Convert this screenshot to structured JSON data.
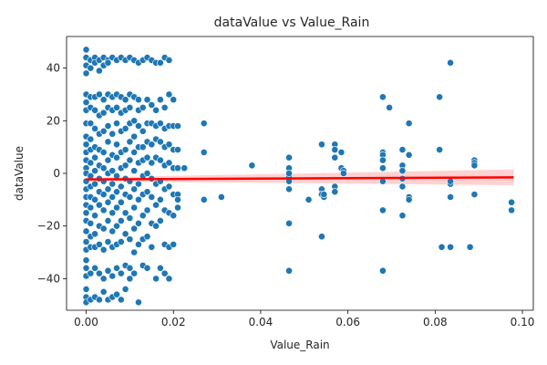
{
  "chart_data": {
    "type": "scatter",
    "title": "dataValue vs Value_Rain",
    "xlabel": "Value_Rain",
    "ylabel": "dataValue",
    "xlim": [
      -0.0045,
      0.1025
    ],
    "ylim": [
      -52,
      52
    ],
    "xticks": [
      0.0,
      0.02,
      0.04,
      0.06,
      0.08,
      0.1
    ],
    "xtick_labels": [
      "0.00",
      "0.02",
      "0.04",
      "0.06",
      "0.08",
      "0.10"
    ],
    "yticks": [
      -40,
      -20,
      0,
      20,
      40
    ],
    "ytick_labels": [
      "−40",
      "−20",
      "0",
      "20",
      "40"
    ],
    "grid": false,
    "legend": "none",
    "colors": {
      "points": "#1f77b4",
      "point_edge": "#ffffff",
      "fit_line": "#ff0000",
      "confidence_band": "#ffcccc"
    },
    "regression": {
      "x": [
        0.0,
        0.098
      ],
      "y": [
        -2.3,
        -1.5
      ],
      "ci_lower": [
        -3.0,
        -4.5
      ],
      "ci_upper": [
        -1.6,
        1.5
      ]
    },
    "series": [
      {
        "x": [
          0.0,
          0.0,
          0.0,
          0.0,
          0.0,
          0.0,
          0.0,
          0.0,
          0.0,
          0.0,
          0.0,
          0.0,
          0.0,
          0.0,
          0.0,
          0.0,
          0.0,
          0.0,
          0.0,
          0.0,
          0.0,
          0.0,
          0.0,
          0.0,
          0.0,
          0.0,
          0.0,
          0.0,
          0.0,
          0.001,
          0.001,
          0.001,
          0.001,
          0.001,
          0.001,
          0.001,
          0.001,
          0.001,
          0.001,
          0.001,
          0.001,
          0.001,
          0.001,
          0.001,
          0.001,
          0.001,
          0.002,
          0.002,
          0.002,
          0.002,
          0.002,
          0.002,
          0.002,
          0.002,
          0.002,
          0.002,
          0.002,
          0.002,
          0.002,
          0.002,
          0.002,
          0.003,
          0.003,
          0.003,
          0.003,
          0.003,
          0.003,
          0.003,
          0.003,
          0.003,
          0.003,
          0.003,
          0.003,
          0.003,
          0.003,
          0.004,
          0.004,
          0.004,
          0.004,
          0.004,
          0.004,
          0.004,
          0.004,
          0.004,
          0.004,
          0.004,
          0.004,
          0.004,
          0.004,
          0.005,
          0.005,
          0.005,
          0.005,
          0.005,
          0.005,
          0.005,
          0.005,
          0.005,
          0.005,
          0.005,
          0.005,
          0.005,
          0.005,
          0.006,
          0.006,
          0.006,
          0.006,
          0.006,
          0.006,
          0.006,
          0.006,
          0.006,
          0.006,
          0.006,
          0.006,
          0.006,
          0.007,
          0.007,
          0.007,
          0.007,
          0.007,
          0.007,
          0.007,
          0.007,
          0.007,
          0.007,
          0.007,
          0.007,
          0.007,
          0.008,
          0.008,
          0.008,
          0.008,
          0.008,
          0.008,
          0.008,
          0.008,
          0.008,
          0.008,
          0.008,
          0.008,
          0.009,
          0.009,
          0.009,
          0.009,
          0.009,
          0.009,
          0.009,
          0.009,
          0.009,
          0.009,
          0.009,
          0.009,
          0.01,
          0.01,
          0.01,
          0.01,
          0.01,
          0.01,
          0.01,
          0.01,
          0.01,
          0.01,
          0.01,
          0.01,
          0.011,
          0.011,
          0.011,
          0.011,
          0.011,
          0.011,
          0.011,
          0.011,
          0.011,
          0.011,
          0.011,
          0.012,
          0.012,
          0.012,
          0.012,
          0.012,
          0.012,
          0.012,
          0.012,
          0.012,
          0.012,
          0.012,
          0.013,
          0.013,
          0.013,
          0.013,
          0.013,
          0.013,
          0.013,
          0.013,
          0.013,
          0.013,
          0.014,
          0.014,
          0.014,
          0.014,
          0.014,
          0.014,
          0.014,
          0.014,
          0.014,
          0.014,
          0.015,
          0.015,
          0.015,
          0.015,
          0.015,
          0.015,
          0.015,
          0.015,
          0.015,
          0.016,
          0.016,
          0.016,
          0.016,
          0.016,
          0.016,
          0.016,
          0.016,
          0.016,
          0.017,
          0.017,
          0.017,
          0.017,
          0.017,
          0.017,
          0.017,
          0.017,
          0.017,
          0.018,
          0.018,
          0.018,
          0.018,
          0.018,
          0.018,
          0.018,
          0.018,
          0.018,
          0.019,
          0.019,
          0.019,
          0.019,
          0.019,
          0.019,
          0.019,
          0.019,
          0.019,
          0.02,
          0.02,
          0.02,
          0.02,
          0.02,
          0.02,
          0.02,
          0.021,
          0.021,
          0.021,
          0.021,
          0.021,
          0.021,
          0.0225,
          0.027,
          0.027,
          0.027,
          0.031,
          0.038,
          0.0465,
          0.0465,
          0.0465,
          0.0465,
          0.0465,
          0.0465,
          0.0465,
          0.0465,
          0.051,
          0.054,
          0.054,
          0.054,
          0.054,
          0.0545,
          0.0545,
          0.057,
          0.057,
          0.057,
          0.057,
          0.057,
          0.0585,
          0.0585,
          0.059,
          0.059,
          0.068,
          0.068,
          0.068,
          0.068,
          0.068,
          0.068,
          0.068,
          0.068,
          0.0695,
          0.0725,
          0.0725,
          0.0725,
          0.0725,
          0.0725,
          0.0725,
          0.074,
          0.074,
          0.074,
          0.074,
          0.081,
          0.081,
          0.0815,
          0.0835,
          0.0835,
          0.0835,
          0.0835,
          0.0835,
          0.088,
          0.089,
          0.089,
          0.089,
          0.089,
          0.0975,
          0.0975
        ],
        "y": [
          47,
          44,
          41,
          38,
          30,
          27,
          24,
          19,
          14,
          11,
          8,
          5,
          2,
          0,
          -3,
          -6,
          -9,
          -12,
          -15,
          -18,
          -22,
          -26,
          -29,
          -33,
          -36,
          -39,
          -44,
          -47,
          -49,
          43,
          40,
          29,
          25,
          19,
          13,
          9,
          4,
          -1,
          -5,
          -9,
          -13,
          -19,
          -24,
          -28,
          -38,
          -48,
          44,
          42,
          29,
          24,
          17,
          10,
          6,
          1,
          -4,
          -10,
          -16,
          -23,
          -28,
          -36,
          -47,
          43,
          39,
          30,
          22,
          15,
          9,
          3,
          -2,
          -7,
          -12,
          -20,
          -27,
          -38,
          -48,
          44,
          41,
          28,
          23,
          16,
          8,
          2,
          -3,
          -8,
          -14,
          -21,
          -29,
          -40,
          -45,
          43,
          42,
          30,
          25,
          18,
          12,
          5,
          0,
          -6,
          -11,
          -18,
          -26,
          -37,
          -48,
          44,
          29,
          24,
          15,
          7,
          1,
          -4,
          -9,
          -15,
          -22,
          -28,
          -39,
          -47,
          43,
          30,
          25,
          19,
          11,
          6,
          -1,
          -7,
          -13,
          -20,
          -27,
          -36,
          -46,
          44,
          29,
          23,
          16,
          8,
          2,
          -5,
          -11,
          -18,
          -26,
          -38,
          -48,
          43,
          28,
          24,
          17,
          9,
          3,
          -2,
          -8,
          -15,
          -23,
          -35,
          -44,
          44,
          30,
          25,
          19,
          12,
          5,
          -3,
          -9,
          -17,
          -25,
          -36,
          -40,
          43,
          29,
          20,
          14,
          8,
          1,
          -6,
          -13,
          -21,
          -30,
          -38,
          42,
          28,
          24,
          18,
          10,
          4,
          -4,
          -10,
          -19,
          -27,
          -49,
          43,
          25,
          16,
          10,
          5,
          -1,
          -8,
          -16,
          -25,
          -35,
          44,
          28,
          19,
          12,
          6,
          0,
          -7,
          -14,
          -24,
          -36,
          43,
          26,
          19,
          11,
          4,
          -2,
          -9,
          -19,
          -28,
          42,
          24,
          18,
          13,
          6,
          -4,
          -12,
          -20,
          -40,
          42,
          28,
          19,
          12,
          5,
          -3,
          -10,
          -18,
          -36,
          44,
          25,
          17,
          10,
          3,
          -6,
          -14,
          -27,
          -38,
          43,
          30,
          18,
          11,
          4,
          -5,
          -15,
          -28,
          -40,
          28,
          18,
          9,
          2,
          -8,
          -16,
          -27,
          18,
          9,
          2,
          -8,
          -10,
          -13,
          2,
          19,
          8,
          -10,
          -9,
          3,
          6,
          2,
          -1,
          -3,
          -6,
          -19,
          -37,
          0,
          -10,
          11,
          -6,
          -8,
          -24,
          -9,
          -8,
          11,
          9,
          6,
          -5,
          -7,
          8,
          2,
          1,
          0,
          29,
          8,
          7,
          5,
          2,
          -3,
          -14,
          -37,
          25,
          9,
          3,
          1,
          -2,
          -5,
          -16,
          19,
          7,
          -9,
          -10,
          29,
          9,
          -28,
          42,
          -4,
          -9,
          -28,
          -3,
          -28,
          5,
          4,
          3,
          -8,
          -11,
          -14
        ]
      }
    ]
  }
}
